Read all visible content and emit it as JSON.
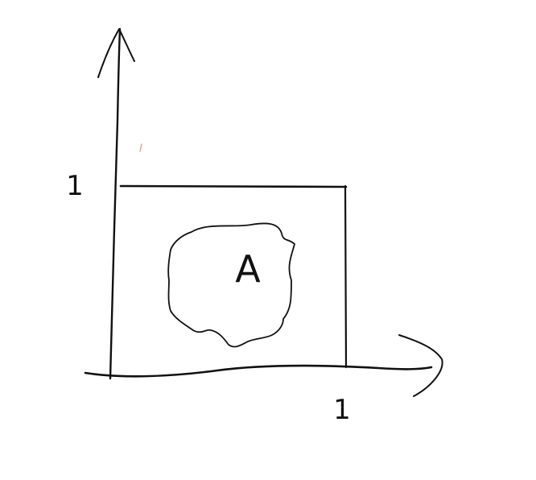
{
  "diagram": {
    "region_label": "A",
    "y_tick_label": "1",
    "x_tick_label": "1"
  },
  "colors": {
    "ink": "#111111",
    "background": "#ffffff",
    "stray_mark": "#e8a08a"
  }
}
